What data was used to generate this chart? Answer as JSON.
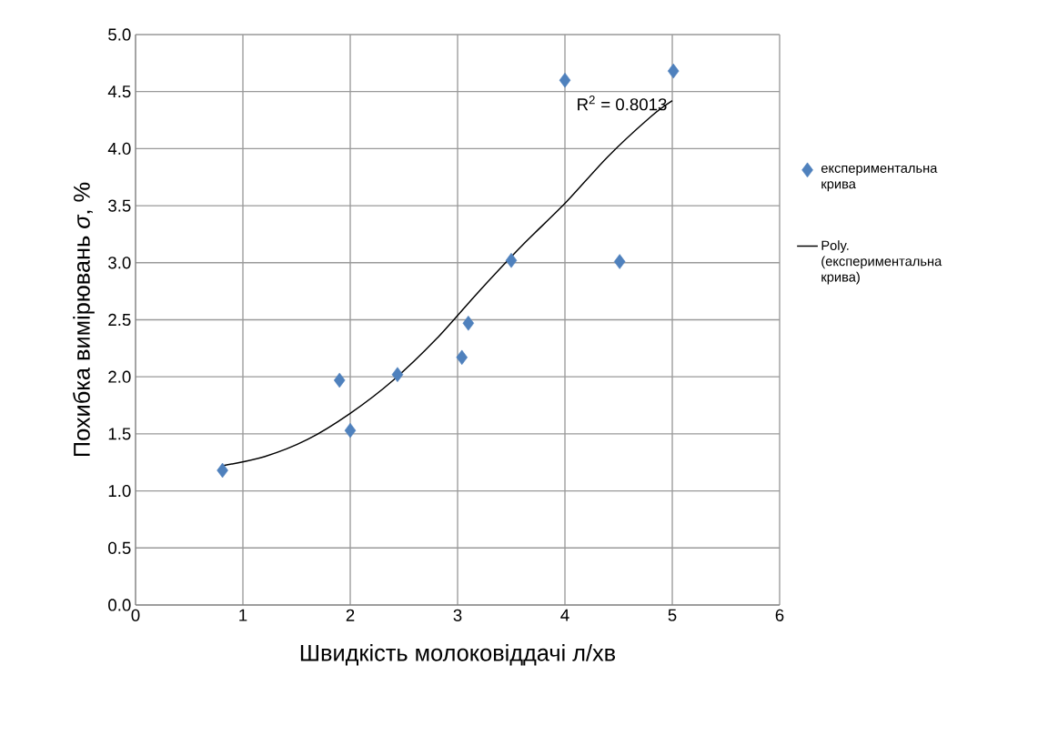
{
  "chart_data": {
    "type": "scatter",
    "xlabel": "Швидкість молоковіддачі л/хв",
    "ylabel": "Похибка вимірювань *σ*, %",
    "xlim": [
      0,
      6
    ],
    "ylim": [
      0,
      5
    ],
    "xticks": [
      0,
      1,
      2,
      3,
      4,
      5,
      6
    ],
    "yticks": [
      {
        "value": 0,
        "label": "0.0"
      },
      0.5,
      {
        "value": 1,
        "label": "1.0"
      },
      1.5,
      {
        "value": 2,
        "label": "2.0"
      },
      2.5,
      {
        "value": 3,
        "label": "3.0"
      },
      3.5,
      {
        "value": 4,
        "label": "4.0"
      },
      4.5,
      {
        "value": 5,
        "label": "5.0"
      }
    ],
    "grid": true,
    "legend": "right",
    "series": [
      {
        "name": "експериментальна крива",
        "color": "#4f81bd",
        "marker": "diamond",
        "x": [
          0.81,
          1.9,
          2.0,
          2.44,
          3.04,
          3.1,
          3.5,
          4.0,
          4.51,
          5.01
        ],
        "values": [
          1.18,
          1.97,
          1.53,
          2.02,
          2.17,
          2.47,
          3.02,
          4.6,
          3.01,
          4.68
        ]
      },
      {
        "name": "Poly. (експериментальна крива)",
        "type": "line",
        "color": "#000000",
        "marker": "none",
        "x": [
          0.81,
          1.2,
          1.6,
          2.0,
          2.4,
          2.8,
          3.2,
          3.6,
          4.0,
          4.4,
          4.8,
          5.0
        ],
        "values": [
          1.22,
          1.3,
          1.45,
          1.68,
          1.97,
          2.33,
          2.75,
          3.15,
          3.52,
          3.93,
          4.28,
          4.42
        ]
      }
    ],
    "annotations": [
      "R$^{2}$ = 0.8013"
    ]
  }
}
